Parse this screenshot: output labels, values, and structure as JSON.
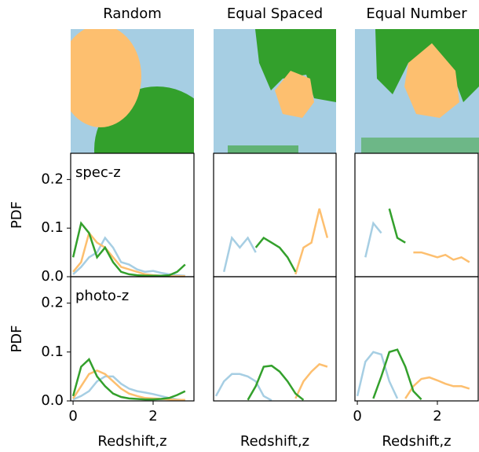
{
  "chart_data": [
    {
      "type": "line",
      "title": "Random",
      "annotation": "spec-z",
      "ylabel": "PDF",
      "x": [
        0,
        0.2,
        0.4,
        0.6,
        0.8,
        1.0,
        1.2,
        1.4,
        1.6,
        1.8,
        2.0,
        2.2,
        2.4,
        2.6,
        2.8
      ],
      "xlim": [
        -0.06,
        3.02
      ],
      "ylim": [
        0,
        0.254
      ],
      "yticks": [
        0.0,
        0.1,
        0.2
      ],
      "series": [
        {
          "color": "#a6cee3",
          "values": [
            0.005,
            0.02,
            0.04,
            0.05,
            0.08,
            0.06,
            0.03,
            0.025,
            0.015,
            0.01,
            0.012,
            0.008,
            0.005,
            0.003,
            0.002
          ]
        },
        {
          "color": "#fdbf6f",
          "values": [
            0.01,
            0.03,
            0.09,
            0.07,
            0.06,
            0.04,
            0.02,
            0.015,
            0.01,
            0.005,
            0.003,
            0.002,
            0.001,
            0.001,
            0.001
          ]
        },
        {
          "color": "#33a02c",
          "values": [
            0.04,
            0.11,
            0.09,
            0.04,
            0.06,
            0.03,
            0.01,
            0.005,
            0.003,
            0.002,
            0.002,
            0.002,
            0.003,
            0.01,
            0.025
          ]
        }
      ]
    },
    {
      "type": "line",
      "title": "Equal Spaced",
      "x": [
        0,
        0.2,
        0.4,
        0.6,
        0.8,
        1.0,
        1.2,
        1.4,
        1.6,
        1.8,
        2.0,
        2.2,
        2.4,
        2.6,
        2.8
      ],
      "xlim": [
        -0.06,
        3.02
      ],
      "ylim": [
        0,
        0.254
      ],
      "series": [
        {
          "color": "#a6cee3",
          "values": [
            null,
            0.01,
            0.08,
            0.06,
            0.08,
            0.05,
            null,
            null,
            null,
            null,
            null,
            null,
            null,
            null,
            null
          ]
        },
        {
          "color": "#fdbf6f",
          "values": [
            null,
            null,
            null,
            null,
            null,
            null,
            null,
            null,
            null,
            null,
            0.005,
            0.06,
            0.07,
            0.14,
            0.08
          ]
        },
        {
          "color": "#33a02c",
          "values": [
            null,
            null,
            null,
            null,
            null,
            0.06,
            0.08,
            0.07,
            0.06,
            0.04,
            0.01,
            null,
            null,
            null,
            null
          ]
        }
      ]
    },
    {
      "type": "line",
      "title": "Equal Number",
      "x": [
        0,
        0.2,
        0.4,
        0.6,
        0.8,
        1.0,
        1.2,
        1.4,
        1.6,
        1.8,
        2.0,
        2.2,
        2.4,
        2.6,
        2.8
      ],
      "xlim": [
        -0.06,
        3.02
      ],
      "ylim": [
        0,
        0.254
      ],
      "series": [
        {
          "color": "#a6cee3",
          "values": [
            null,
            0.04,
            0.11,
            0.09,
            null,
            null,
            null,
            null,
            null,
            null,
            null,
            null,
            null,
            null,
            null
          ]
        },
        {
          "color": "#fdbf6f",
          "values": [
            null,
            null,
            null,
            null,
            null,
            null,
            null,
            0.05,
            0.05,
            0.045,
            0.04,
            0.045,
            0.035,
            0.04,
            0.03
          ]
        },
        {
          "color": "#33a02c",
          "values": [
            null,
            null,
            null,
            null,
            0.14,
            0.08,
            0.07,
            null,
            null,
            null,
            null,
            null,
            null,
            null,
            null
          ]
        }
      ]
    },
    {
      "type": "line",
      "annotation": "photo-z",
      "ylabel": "PDF",
      "xlabel": "Redshift,z",
      "x": [
        0,
        0.2,
        0.4,
        0.6,
        0.8,
        1.0,
        1.2,
        1.4,
        1.6,
        1.8,
        2.0,
        2.2,
        2.4,
        2.6,
        2.8
      ],
      "xlim": [
        -0.06,
        3.02
      ],
      "ylim": [
        0,
        0.254
      ],
      "yticks": [
        0.0,
        0.1,
        0.2
      ],
      "xticks": [
        0,
        2
      ],
      "series": [
        {
          "color": "#a6cee3",
          "values": [
            0.003,
            0.01,
            0.02,
            0.04,
            0.05,
            0.05,
            0.035,
            0.025,
            0.02,
            0.017,
            0.014,
            0.01,
            0.006,
            0.003,
            0.001
          ]
        },
        {
          "color": "#fdbf6f",
          "values": [
            0.005,
            0.03,
            0.055,
            0.062,
            0.055,
            0.04,
            0.025,
            0.015,
            0.01,
            0.006,
            0.005,
            0.004,
            0.003,
            0.002,
            0.002
          ]
        },
        {
          "color": "#33a02c",
          "values": [
            0.01,
            0.07,
            0.085,
            0.05,
            0.03,
            0.015,
            0.008,
            0.005,
            0.004,
            0.003,
            0.003,
            0.004,
            0.006,
            0.012,
            0.02
          ]
        }
      ]
    },
    {
      "type": "line",
      "xlabel": "Redshift,z",
      "x": [
        0,
        0.2,
        0.4,
        0.6,
        0.8,
        1.0,
        1.2,
        1.4,
        1.6,
        1.8,
        2.0,
        2.2,
        2.4,
        2.6,
        2.8
      ],
      "xlim": [
        -0.06,
        3.02
      ],
      "ylim": [
        0,
        0.254
      ],
      "series": [
        {
          "color": "#a6cee3",
          "values": [
            0.01,
            0.04,
            0.055,
            0.055,
            0.05,
            0.04,
            0.01,
            0.001,
            null,
            null,
            null,
            null,
            null,
            null,
            null
          ]
        },
        {
          "color": "#fdbf6f",
          "values": [
            null,
            null,
            null,
            null,
            null,
            null,
            null,
            null,
            null,
            null,
            0.005,
            0.04,
            0.06,
            0.075,
            0.07
          ]
        },
        {
          "color": "#33a02c",
          "values": [
            null,
            null,
            null,
            null,
            0.002,
            0.03,
            0.07,
            0.072,
            0.06,
            0.04,
            0.015,
            0.002,
            null,
            null,
            null
          ]
        }
      ]
    },
    {
      "type": "line",
      "xlabel": "Redshift,z",
      "x": [
        0,
        0.2,
        0.4,
        0.6,
        0.8,
        1.0,
        1.2,
        1.4,
        1.6,
        1.8,
        2.0,
        2.2,
        2.4,
        2.6,
        2.8
      ],
      "xlim": [
        -0.06,
        3.02
      ],
      "ylim": [
        0,
        0.254
      ],
      "xticks": [
        0,
        2
      ],
      "series": [
        {
          "color": "#a6cee3",
          "values": [
            0.01,
            0.08,
            0.1,
            0.095,
            0.04,
            0.005,
            null,
            null,
            null,
            null,
            null,
            null,
            null,
            null,
            null
          ]
        },
        {
          "color": "#fdbf6f",
          "values": [
            null,
            null,
            null,
            null,
            null,
            null,
            0.005,
            0.03,
            0.045,
            0.048,
            0.042,
            0.035,
            0.03,
            0.03,
            0.025
          ]
        },
        {
          "color": "#33a02c",
          "values": [
            null,
            null,
            0.005,
            0.05,
            0.1,
            0.105,
            0.07,
            0.02,
            0.003,
            null,
            null,
            null,
            null,
            null,
            null
          ]
        }
      ]
    }
  ]
}
